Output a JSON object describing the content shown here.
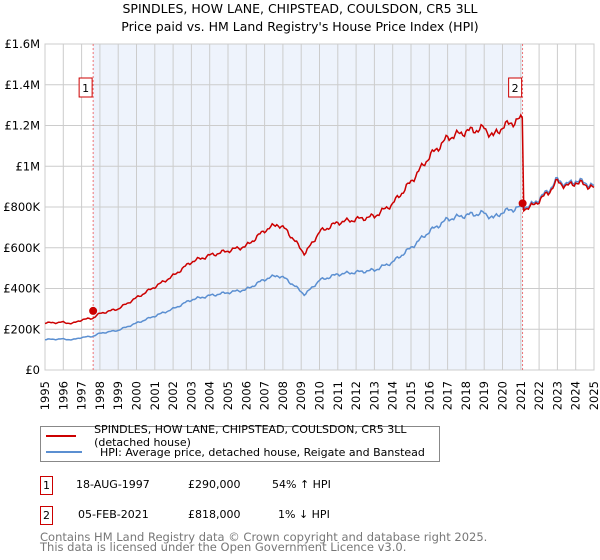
{
  "chart_data": {
    "type": "line",
    "title": "SPINDLES, HOW LANE, CHIPSTEAD, COULSDON, CR5 3LL",
    "subtitle": "Price paid vs. HM Land Registry's House Price Index (HPI)",
    "xlim": [
      1995,
      2025
    ],
    "ylim": [
      0,
      1600000
    ],
    "yticks": [
      {
        "v": 0,
        "label": "£0"
      },
      {
        "v": 200000,
        "label": "£200K"
      },
      {
        "v": 400000,
        "label": "£400K"
      },
      {
        "v": 600000,
        "label": "£600K"
      },
      {
        "v": 800000,
        "label": "£800K"
      },
      {
        "v": 1000000,
        "label": "£1M"
      },
      {
        "v": 1200000,
        "label": "£1.2M"
      },
      {
        "v": 1400000,
        "label": "£1.4M"
      },
      {
        "v": 1600000,
        "label": "£1.6M"
      }
    ],
    "xticks": [
      "1995",
      "1996",
      "1997",
      "1998",
      "1999",
      "2000",
      "2001",
      "2002",
      "2003",
      "2004",
      "2005",
      "2006",
      "2007",
      "2008",
      "2009",
      "2010",
      "2011",
      "2012",
      "2013",
      "2014",
      "2015",
      "2016",
      "2017",
      "2018",
      "2019",
      "2020",
      "2021",
      "2022",
      "2023",
      "2024",
      "2025"
    ],
    "grid": true,
    "hpi": {
      "x": [
        1995,
        1996,
        1996.5,
        1997,
        1997.6,
        1998,
        1999,
        2000,
        2001,
        2002,
        2003,
        2004,
        2005,
        2006,
        2007,
        2007.7,
        2008.2,
        2009.2,
        2010,
        2011,
        2012,
        2013,
        2014,
        2015,
        2016,
        2017,
        2018,
        2019,
        2019.5,
        2020,
        2021,
        2021.5,
        2022,
        2022.5,
        2023,
        2023.5,
        2024,
        2024.5,
        2025
      ],
      "y": [
        150000,
        152000,
        148000,
        160000,
        165000,
        180000,
        195000,
        230000,
        265000,
        300000,
        345000,
        365000,
        380000,
        395000,
        445000,
        465000,
        445000,
        370000,
        440000,
        470000,
        480000,
        490000,
        530000,
        600000,
        680000,
        740000,
        760000,
        770000,
        745000,
        775000,
        800000,
        805000,
        840000,
        880000,
        935000,
        910000,
        930000,
        920000,
        900000
      ]
    },
    "sales": [
      {
        "n": "1",
        "x": 1997.63,
        "date": "18-AUG-1997",
        "price": "£290,000",
        "value": 290000,
        "hpi": "54% ↑ HPI"
      },
      {
        "n": "2",
        "x": 2021.1,
        "date": "05-FEB-2021",
        "price": "£818,000",
        "value": 818000,
        "hpi": "1% ↓ HPI"
      }
    ],
    "ratio_before": 1.54,
    "ratio_after": 0.99,
    "colors": {
      "property": "#cc0000",
      "hpi": "#5b8fd1",
      "shade": "#eef3fc"
    },
    "legend": {
      "property": "SPINDLES, HOW LANE, CHIPSTEAD, COULSDON, CR5 3LL (detached house)",
      "hpi": "HPI: Average price, detached house, Reigate and Banstead"
    }
  },
  "footer": {
    "line1": "Contains HM Land Registry data © Crown copyright and database right 2025.",
    "line2": "This data is licensed under the Open Government Licence v3.0."
  }
}
